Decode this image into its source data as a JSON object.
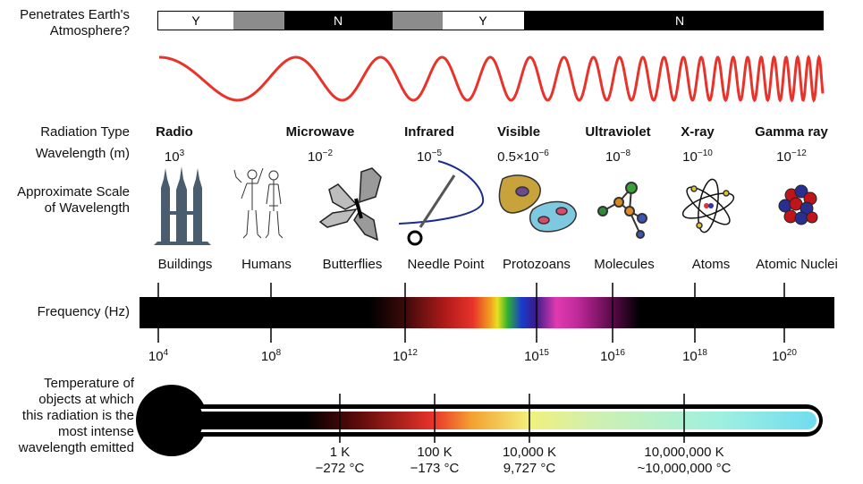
{
  "atmosphere": {
    "label_line1": "Penetrates Earth's",
    "label_line2": "Atmosphere?",
    "segments": [
      "Y",
      "N",
      "Y",
      "N"
    ]
  },
  "rows": {
    "radiation_type": "Radiation Type",
    "wavelength": "Wavelength (m)",
    "scale_line1": "Approximate Scale",
    "scale_line2": "of Wavelength",
    "frequency": "Frequency (Hz)",
    "temp_line1": "Temperature of",
    "temp_line2": "objects at which",
    "temp_line3": "this radiation is the",
    "temp_line4": "most intense",
    "temp_line5": "wavelength emitted"
  },
  "types": [
    {
      "name": "Radio",
      "wl_base": "10",
      "wl_exp": "3",
      "object": "Buildings"
    },
    {
      "name": "",
      "wl_base": "",
      "wl_exp": "",
      "object": "Humans"
    },
    {
      "name": "Microwave",
      "wl_base": "10",
      "wl_exp": "−2",
      "object": "Butterflies"
    },
    {
      "name": "Infrared",
      "wl_base": "10",
      "wl_exp": "−5",
      "object": "Needle Point"
    },
    {
      "name": "Visible",
      "wl_base": "0.5×10",
      "wl_exp": "−6",
      "object": "Protozoans"
    },
    {
      "name": "Ultraviolet",
      "wl_base": "10",
      "wl_exp": "−8",
      "object": "Molecules"
    },
    {
      "name": "X-ray",
      "wl_base": "10",
      "wl_exp": "−10",
      "object": "Atoms"
    },
    {
      "name": "Gamma ray",
      "wl_base": "10",
      "wl_exp": "−12",
      "object": "Atomic Nuclei"
    }
  ],
  "frequency_ticks": [
    {
      "base": "10",
      "exp": "4"
    },
    {
      "base": "10",
      "exp": "8"
    },
    {
      "base": "10",
      "exp": "12"
    },
    {
      "base": "10",
      "exp": "15"
    },
    {
      "base": "10",
      "exp": "16"
    },
    {
      "base": "10",
      "exp": "18"
    },
    {
      "base": "10",
      "exp": "20"
    }
  ],
  "temperatures": [
    {
      "k": "1 K",
      "c": "−272 °C"
    },
    {
      "k": "100 K",
      "c": "−173 °C"
    },
    {
      "k": "10,000 K",
      "c": "9,727 °C"
    },
    {
      "k": "10,000,000 K",
      "c": "~10,000,000 °C"
    }
  ],
  "icons": [
    "building-icon",
    "human-icon",
    "butterfly-icon",
    "needle-icon",
    "protozoa-icon",
    "molecule-icon",
    "atom-icon",
    "nucleus-icon"
  ],
  "colors": {
    "wave": "#e8332a",
    "band": "#000000",
    "gray": "#8c8c8c",
    "thermo_outline": "#000000"
  }
}
